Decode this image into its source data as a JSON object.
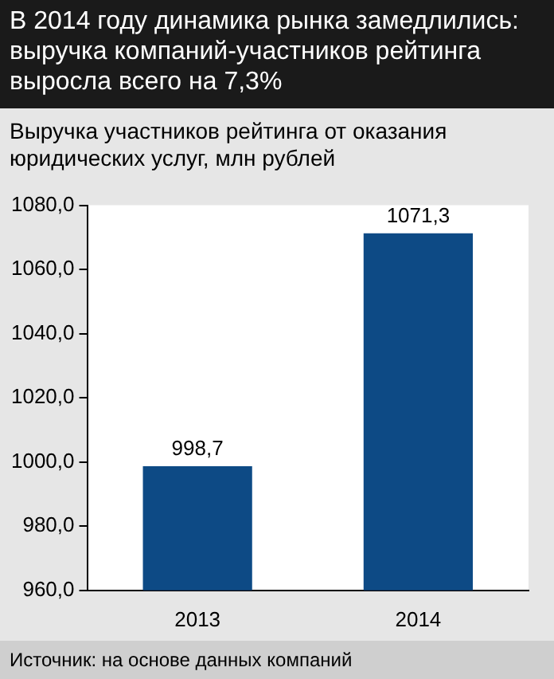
{
  "chart_data": {
    "type": "bar",
    "title": "В 2014 году динамика рынка замедлились: выручка компаний-участников рейтинга выросла всего на 7,3%",
    "subtitle": "Выручка участников рейтинга от оказания юридических услуг, млн рублей",
    "categories": [
      "2013",
      "2014"
    ],
    "values": [
      998.7,
      1071.3
    ],
    "value_labels": [
      "998,7",
      "1071,3"
    ],
    "color": "#0d4a85",
    "ylim": [
      960,
      1080
    ],
    "yticks": [
      {
        "value": 960,
        "label": "960,0"
      },
      {
        "value": 980,
        "label": "980,0"
      },
      {
        "value": 1000,
        "label": "1000,0"
      },
      {
        "value": 1020,
        "label": "1020,0"
      },
      {
        "value": 1040,
        "label": "1040,0"
      },
      {
        "value": 1060,
        "label": "1060,0"
      },
      {
        "value": 1080,
        "label": "1080,0"
      }
    ],
    "annotations": [
      "Источник: на основе данных компаний"
    ]
  }
}
